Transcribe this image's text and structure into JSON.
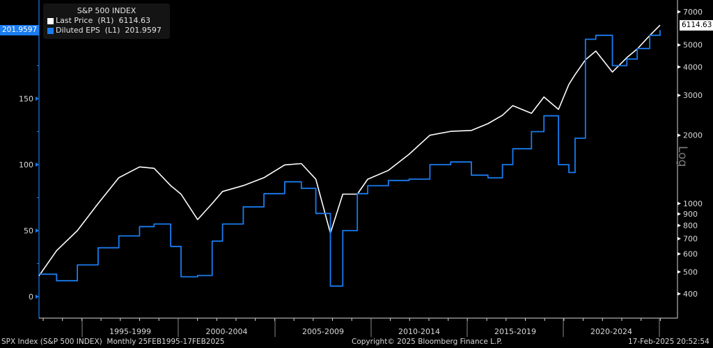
{
  "legend": {
    "title": "S&P 500 INDEX",
    "series": [
      {
        "label": "Last Price  (R1)  6114.63",
        "color": "#ffffff"
      },
      {
        "label": "Diluted EPS  (L1)  201.9597",
        "color": "#1a7cf0"
      }
    ]
  },
  "tags": {
    "left_value": "201.9597",
    "right_value": "6114.63"
  },
  "right_axis_scale_label": "Log",
  "footer": {
    "left": "SPX Index (S&P 500 INDEX)  Monthly 25FEB1995-17FEB2025",
    "center": "Copyright© 2025 Bloomberg Finance L.P.",
    "right": "17-Feb-2025 20:52:54"
  },
  "chart_data": {
    "type": "line",
    "title": "S&P 500 INDEX",
    "xlabel": "",
    "x_period_labels": [
      "1995-1999",
      "2000-2004",
      "2005-2009",
      "2010-2014",
      "2015-2019",
      "2020-2024"
    ],
    "left_axis": {
      "label": "Diluted EPS (L1)",
      "ticks": [
        0,
        50,
        100,
        150
      ],
      "ylim": [
        -1,
        210
      ],
      "scale": "linear"
    },
    "right_axis": {
      "label": "Last Price (R1)",
      "ticks": [
        400,
        500,
        600,
        700,
        800,
        900,
        1000,
        2000,
        3000,
        4000,
        5000,
        7000
      ],
      "ylim": [
        390,
        7500
      ],
      "scale": "log"
    },
    "x": [
      1995.15,
      1996.0,
      1997.0,
      1998.0,
      1999.0,
      2000.0,
      2000.7,
      2001.5,
      2002.0,
      2002.8,
      2003.5,
      2004.0,
      2005.0,
      2006.0,
      2007.0,
      2007.8,
      2008.5,
      2009.2,
      2009.8,
      2010.5,
      2011.0,
      2012.0,
      2013.0,
      2014.0,
      2015.0,
      2016.0,
      2016.8,
      2017.5,
      2018.0,
      2018.9,
      2019.5,
      2020.2,
      2020.7,
      2021.0,
      2021.5,
      2022.0,
      2022.8,
      2023.5,
      2024.0,
      2024.6,
      2025.1
    ],
    "series": [
      {
        "name": "Last Price (R1)",
        "axis": "right",
        "values": [
          480,
          620,
          760,
          1000,
          1300,
          1450,
          1430,
          1200,
          1100,
          850,
          1000,
          1130,
          1200,
          1300,
          1480,
          1500,
          1280,
          740,
          1100,
          1100,
          1280,
          1400,
          1650,
          2000,
          2080,
          2100,
          2250,
          2450,
          2700,
          2500,
          2950,
          2600,
          3350,
          3700,
          4300,
          4700,
          3800,
          4400,
          4800,
          5500,
          6114.63
        ]
      },
      {
        "name": "Diluted EPS (L1)",
        "axis": "left",
        "values": [
          17,
          12,
          24,
          37,
          46,
          53,
          55,
          38,
          15,
          16,
          42,
          55,
          68,
          78,
          87,
          82,
          63,
          8,
          50,
          78,
          84,
          88,
          89,
          100,
          102,
          92,
          90,
          100,
          112,
          125,
          137,
          100,
          94,
          120,
          195,
          198,
          175,
          180,
          188,
          198,
          201.96
        ]
      }
    ]
  }
}
